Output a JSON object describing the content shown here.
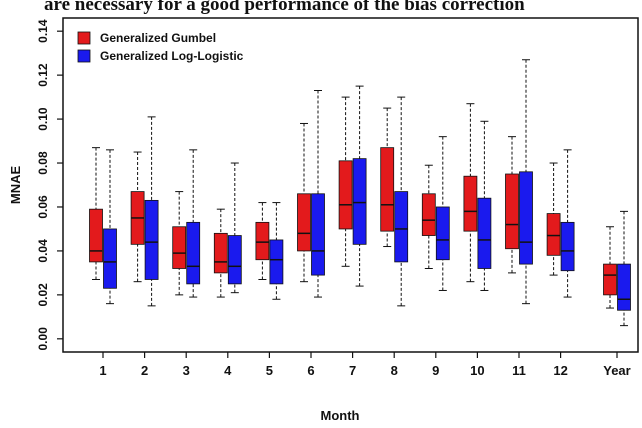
{
  "caption": "are necessary for a good performance of the bias correction",
  "chart_data": {
    "type": "box",
    "x_label": "Month",
    "y_label": "MNAE",
    "categories": [
      "1",
      "2",
      "3",
      "4",
      "5",
      "6",
      "7",
      "8",
      "9",
      "10",
      "11",
      "12",
      "Year"
    ],
    "ylim": [
      -0.006,
      0.146
    ],
    "yticks": [
      {
        "value": 0,
        "label": "0.00"
      },
      {
        "value": 0.02,
        "label": "0.02"
      },
      {
        "value": 0.04,
        "label": "0.04"
      },
      {
        "value": 0.06,
        "label": "0.06"
      },
      {
        "value": 0.08,
        "label": "0.08"
      },
      {
        "value": 0.1,
        "label": "0.10"
      },
      {
        "value": 0.12,
        "label": "0.12"
      },
      {
        "value": 0.14,
        "label": "0.14"
      }
    ],
    "legend": "upper left",
    "series": [
      {
        "name": "Generalized Gumbel",
        "color": "#e31a1c",
        "min": [
          0.027,
          0.026,
          0.02,
          0.019,
          0.027,
          0.026,
          0.033,
          0.042,
          0.032,
          0.026,
          0.03,
          0.029,
          0.014
        ],
        "q1": [
          0.035,
          0.043,
          0.032,
          0.03,
          0.036,
          0.04,
          0.05,
          0.049,
          0.047,
          0.049,
          0.041,
          0.038,
          0.02
        ],
        "median": [
          0.04,
          0.055,
          0.039,
          0.035,
          0.044,
          0.048,
          0.061,
          0.061,
          0.054,
          0.058,
          0.052,
          0.047,
          0.029
        ],
        "q3": [
          0.059,
          0.067,
          0.051,
          0.048,
          0.053,
          0.066,
          0.081,
          0.087,
          0.066,
          0.074,
          0.075,
          0.057,
          0.034
        ],
        "max": [
          0.087,
          0.085,
          0.067,
          0.059,
          0.062,
          0.098,
          0.11,
          0.105,
          0.079,
          0.107,
          0.092,
          0.08,
          0.051
        ]
      },
      {
        "name": "Generalized Log-Logistic",
        "color": "#1a1aee",
        "min": [
          0.016,
          0.015,
          0.019,
          0.021,
          0.018,
          0.019,
          0.024,
          0.015,
          0.022,
          0.022,
          0.016,
          0.019,
          0.006
        ],
        "q1": [
          0.023,
          0.027,
          0.025,
          0.025,
          0.025,
          0.029,
          0.043,
          0.035,
          0.036,
          0.032,
          0.034,
          0.031,
          0.013
        ],
        "median": [
          0.035,
          0.044,
          0.033,
          0.033,
          0.036,
          0.04,
          0.062,
          0.05,
          0.045,
          0.045,
          0.044,
          0.04,
          0.018
        ],
        "q3": [
          0.05,
          0.063,
          0.053,
          0.047,
          0.045,
          0.066,
          0.082,
          0.067,
          0.06,
          0.064,
          0.076,
          0.053,
          0.034
        ],
        "max": [
          0.086,
          0.101,
          0.086,
          0.08,
          0.062,
          0.113,
          0.115,
          0.11,
          0.092,
          0.099,
          0.127,
          0.086,
          0.058
        ]
      }
    ]
  }
}
